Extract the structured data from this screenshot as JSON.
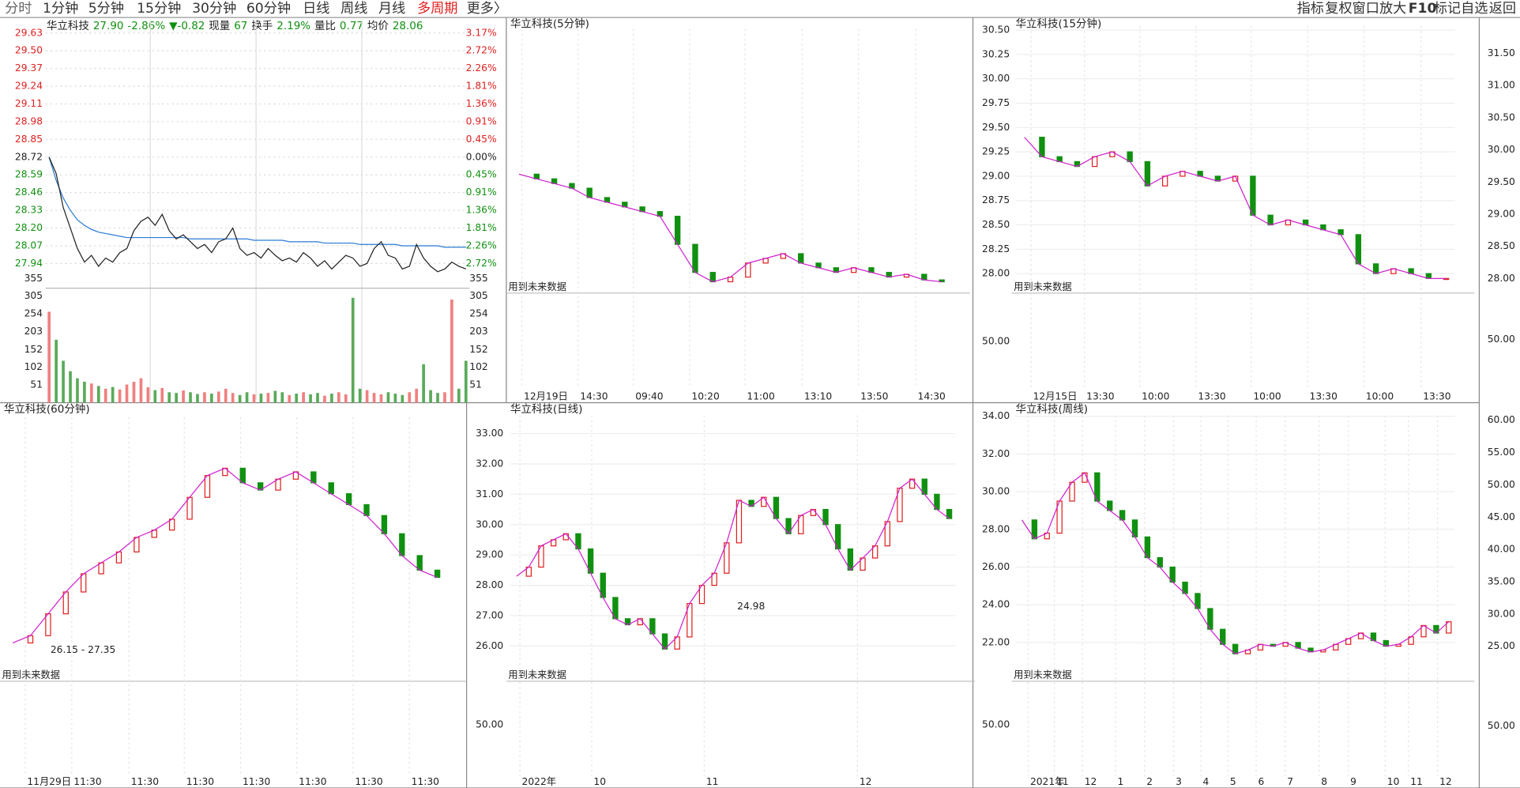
{
  "toolbar": {
    "periods": [
      "分时",
      "1分钟",
      "5分钟",
      "15分钟",
      "30分钟",
      "60分钟",
      "日线",
      "周线",
      "月线",
      "多周期",
      "更多〉"
    ],
    "menu": [
      "指标",
      "复权",
      "窗口",
      "放大",
      "F10",
      "标记",
      "自选",
      "返回"
    ]
  },
  "intraday": {
    "info": [
      "华立科技",
      "27.90",
      "-2.86%",
      "▼-0.82",
      "现量",
      "67",
      "换手",
      "2.19%",
      "量比",
      "0.77",
      "均价",
      "28.06"
    ],
    "ylim": [
      27.83,
      29.68
    ],
    "yticks": [
      29.63,
      {
        "value": 29.5,
        "label": "29.50"
      },
      29.37,
      29.24,
      29.11,
      28.98,
      28.85,
      28.72,
      28.59,
      28.46,
      28.33,
      {
        "value": 28.2,
        "label": "28.20"
      },
      28.07,
      27.94
    ],
    "pct_ticks": [
      {
        "value": 3.17,
        "label": "3.17%"
      },
      {
        "value": 2.72,
        "label": "2.72%"
      },
      {
        "value": 2.26,
        "label": "2.26%"
      },
      {
        "value": 1.81,
        "label": "1.81%"
      },
      {
        "value": 1.36,
        "label": "1.36%"
      },
      {
        "value": 0.91,
        "label": "0.91%"
      },
      {
        "value": 0.45,
        "label": "0.45%"
      },
      {
        "value": 0,
        "label": "0.00%"
      },
      {
        "value": -0.45,
        "label": "0.45%"
      },
      {
        "value": -0.91,
        "label": "0.91%"
      },
      {
        "value": -1.36,
        "label": "1.36%"
      },
      {
        "value": -1.81,
        "label": "1.81%"
      },
      {
        "value": -2.26,
        "label": "2.26%"
      },
      {
        "value": -2.72,
        "label": "2.72%"
      }
    ],
    "price": [
      28.72,
      28.6,
      28.35,
      28.2,
      28.05,
      27.95,
      28.0,
      27.92,
      27.98,
      27.95,
      28.02,
      28.05,
      28.18,
      28.25,
      28.28,
      28.22,
      28.3,
      28.18,
      28.12,
      28.15,
      28.1,
      28.05,
      28.08,
      28.02,
      28.1,
      28.12,
      28.2,
      28.05,
      28.0,
      28.02,
      27.98,
      28.05,
      28.0,
      27.96,
      27.98,
      27.95,
      28.02,
      27.98,
      27.92,
      27.96,
      27.9,
      27.95,
      28.0,
      27.98,
      27.92,
      27.94,
      28.05,
      28.1,
      28.0,
      27.98,
      27.9,
      27.92,
      28.08,
      27.98,
      27.92,
      27.88,
      27.9,
      27.95,
      27.92,
      27.9
    ],
    "avg": [
      28.72,
      28.55,
      28.42,
      28.33,
      28.26,
      28.22,
      28.19,
      28.17,
      28.16,
      28.15,
      28.14,
      28.13,
      28.13,
      28.13,
      28.13,
      28.13,
      28.13,
      28.13,
      28.13,
      28.13,
      28.12,
      28.12,
      28.12,
      28.12,
      28.12,
      28.12,
      28.12,
      28.12,
      28.12,
      28.11,
      28.11,
      28.11,
      28.11,
      28.11,
      28.1,
      28.1,
      28.1,
      28.1,
      28.1,
      28.09,
      28.09,
      28.09,
      28.09,
      28.09,
      28.08,
      28.08,
      28.08,
      28.08,
      28.08,
      28.08,
      28.07,
      28.07,
      28.07,
      28.07,
      28.07,
      28.07,
      28.06,
      28.06,
      28.06,
      28.06
    ],
    "vlim": [
      0,
      355
    ],
    "vticks": [
      355,
      305,
      254,
      203,
      152,
      102,
      51
    ],
    "volume": [
      260,
      180,
      120,
      90,
      70,
      60,
      55,
      48,
      40,
      45,
      38,
      52,
      60,
      70,
      44,
      36,
      42,
      30,
      28,
      35,
      30,
      25,
      30,
      26,
      32,
      40,
      28,
      22,
      30,
      24,
      26,
      28,
      34,
      30,
      22,
      26,
      30,
      24,
      28,
      20,
      26,
      30,
      24,
      300,
      40,
      36,
      28,
      24,
      30,
      26,
      22,
      30,
      40,
      110,
      36,
      28,
      30,
      295,
      40,
      120
    ]
  },
  "panels": [
    {
      "title": "华立科技(5分钟)",
      "note": "用到未来数据",
      "ylim": [
        27.7,
        30.5
      ],
      "values": [
        28.95,
        28.9,
        28.85,
        28.8,
        28.7,
        28.65,
        28.6,
        28.55,
        28.5,
        28.2,
        27.9,
        27.8,
        27.85,
        28.0,
        28.05,
        28.1,
        28.0,
        27.95,
        27.9,
        27.95,
        27.9,
        27.85,
        27.88,
        27.82,
        27.8
      ],
      "x_labels": [
        "12月19日",
        "14:30",
        "09:40",
        "10:20",
        "11:00",
        "13:10",
        "13:50",
        "14:30"
      ]
    },
    {
      "title": "华立科技(15分钟)",
      "note": "用到未来数据",
      "ylim": [
        27.82,
        30.54
      ],
      "yticks": [
        {
          "value": 30.5,
          "label": "30.50"
        },
        30.25,
        {
          "value": 30,
          "label": "30.00"
        },
        29.75,
        {
          "value": 29.5,
          "label": "29.50"
        },
        29.25,
        {
          "value": 29,
          "label": "29.00"
        },
        28.75,
        {
          "value": 28.5,
          "label": "28.50"
        },
        28.25,
        {
          "value": 28,
          "label": "28.00"
        }
      ],
      "ind_tick": {
        "value": 50,
        "label": "50.00"
      },
      "values": [
        29.4,
        29.2,
        29.15,
        29.1,
        29.2,
        29.25,
        29.15,
        28.9,
        29.0,
        29.05,
        29.0,
        28.95,
        29.0,
        28.6,
        28.5,
        28.55,
        28.5,
        28.45,
        28.4,
        28.1,
        28.0,
        28.05,
        28.0,
        27.95,
        27.95
      ],
      "x_labels": [
        "12月15日",
        "13:30",
        "10:00",
        "13:30",
        "10:00",
        "13:30",
        "10:00",
        "13:30"
      ],
      "right_ticks": [
        {
          "value": 31.5,
          "label": "31.50"
        },
        {
          "value": 31,
          "label": "31.00"
        },
        {
          "value": 30.5,
          "label": "30.50"
        },
        {
          "value": 30,
          "label": "30.00"
        },
        {
          "value": 29.5,
          "label": "29.50"
        },
        {
          "value": 29,
          "label": "29.00"
        },
        {
          "value": 28.5,
          "label": "28.50"
        },
        {
          "value": 28,
          "label": "28.00"
        }
      ],
      "right_ind_tick": {
        "value": 50,
        "label": "50.00"
      }
    },
    {
      "title": "华立科技(60分钟)",
      "note": "用到未来数据",
      "annotation": "26.15 - 27.35",
      "ylim": [
        25.4,
        32.6
      ],
      "values": [
        26.4,
        26.6,
        27.2,
        27.8,
        28.3,
        28.6,
        28.9,
        29.3,
        29.5,
        29.8,
        30.4,
        31.0,
        31.2,
        30.8,
        30.6,
        30.9,
        31.1,
        30.8,
        30.5,
        30.2,
        29.9,
        29.4,
        28.8,
        28.4,
        28.2
      ],
      "x_labels": [
        "11月29日",
        "11:30",
        "11:30",
        "11:30",
        "11:30",
        "11:30",
        "11:30",
        "11:30"
      ]
    },
    {
      "title": "华立科技(日线)",
      "note": "用到未来数据",
      "annotation": "24.98",
      "ylim": [
        25.0,
        33.6
      ],
      "yticks": [
        {
          "value": 33,
          "label": "33.00"
        },
        {
          "value": 32,
          "label": "32.00"
        },
        {
          "value": 31,
          "label": "31.00"
        },
        {
          "value": 30,
          "label": "30.00"
        },
        {
          "value": 29,
          "label": "29.00"
        },
        {
          "value": 28,
          "label": "28.00"
        },
        {
          "value": 27,
          "label": "27.00"
        },
        {
          "value": 26,
          "label": "26.00"
        }
      ],
      "ind_tick": {
        "value": 50,
        "label": "50.00"
      },
      "values": [
        28.3,
        28.6,
        29.3,
        29.5,
        29.7,
        29.2,
        28.4,
        27.6,
        26.9,
        26.7,
        26.9,
        26.4,
        25.9,
        26.3,
        27.4,
        28.0,
        28.4,
        29.4,
        30.8,
        30.6,
        30.9,
        30.2,
        29.7,
        30.3,
        30.5,
        30.0,
        29.2,
        28.5,
        28.9,
        29.3,
        30.1,
        31.2,
        31.5,
        31.0,
        30.5,
        30.2
      ],
      "x_labels": [
        "2022年",
        "10",
        "11",
        "12"
      ]
    },
    {
      "title": "华立科技(周线)",
      "note": "用到未来数据",
      "ylim": [
        20.2,
        34.05
      ],
      "yticks": [
        {
          "value": 34,
          "label": "34.00"
        },
        {
          "value": 32,
          "label": "32.00"
        },
        {
          "value": 30,
          "label": "30.00"
        },
        {
          "value": 28,
          "label": "28.00"
        },
        {
          "value": 26,
          "label": "26.00"
        },
        {
          "value": 24,
          "label": "24.00"
        },
        {
          "value": 22,
          "label": "22.00"
        }
      ],
      "ind_tick": {
        "value": 50,
        "label": "50.00"
      },
      "values": [
        28.5,
        27.5,
        27.8,
        29.5,
        30.5,
        31.0,
        29.5,
        29.0,
        28.5,
        27.6,
        26.5,
        26.0,
        25.2,
        24.6,
        23.8,
        22.7,
        21.9,
        21.4,
        21.6,
        21.9,
        21.8,
        22.0,
        21.7,
        21.5,
        21.6,
        21.9,
        22.2,
        22.5,
        22.1,
        21.8,
        21.9,
        22.3,
        22.9,
        22.5,
        23.1
      ],
      "x_labels": [
        "2021年",
        "11",
        "12",
        "1",
        "2",
        "3",
        "4",
        "5",
        "6",
        "7",
        "8",
        "9",
        "10",
        "11",
        "12"
      ],
      "right_ticks": [
        {
          "value": 60,
          "label": "60.00"
        },
        {
          "value": 55,
          "label": "55.00"
        },
        {
          "value": 50,
          "label": "50.00"
        },
        {
          "value": 45,
          "label": "45.00"
        },
        {
          "value": 40,
          "label": "40.00"
        },
        {
          "value": 35,
          "label": "35.00"
        },
        {
          "value": 30,
          "label": "30.00"
        },
        {
          "value": 25,
          "label": "25.00"
        }
      ],
      "right_ind_tick": {
        "value": 50,
        "label": "50.00"
      }
    }
  ]
}
